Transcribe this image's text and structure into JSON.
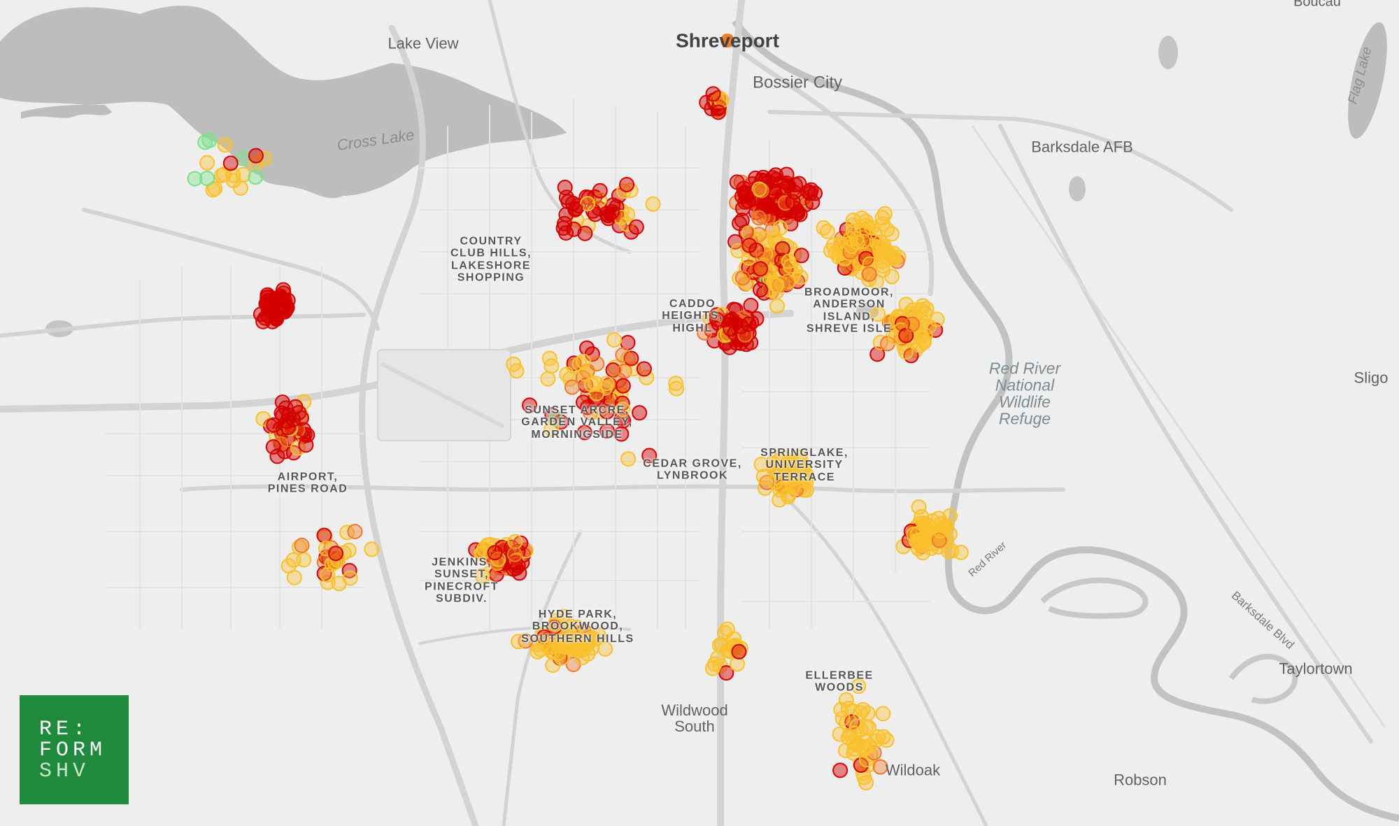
{
  "map": {
    "colors": {
      "critical": "#d40000",
      "high": "#f0792a",
      "moderate": "#fbc02d",
      "good": "#7be08a"
    },
    "places": {
      "shreveport": "Shreveport",
      "bossier_city": "Bossier City",
      "lake_view": "Lake View",
      "cross_lake": "Cross Lake",
      "barksdale_afb": "Barksdale AFB",
      "boucau": "Boucau",
      "flag_lake": "Flag Lake",
      "sligo": "Sligo",
      "red_river_refuge": "Red River National Wildlife Refuge",
      "red_river": "Red River",
      "barksdale_blvd": "Barksdale Blvd",
      "taylortown": "Taylortown",
      "wildwood_south": "Wildwood South",
      "robson": "Robson",
      "wildoak": "Wildoak"
    },
    "neighborhoods": {
      "country_club": [
        "COUNTRY",
        "CLUB HILLS,",
        "LAKESHORE",
        "SHOPPING"
      ],
      "caddo_heights": [
        "CADDO",
        "HEIGHTS,",
        "HIGHL"
      ],
      "broadmoor": [
        "BROADMOOR,",
        "ANDERSON",
        "ISLAND,",
        "SHREVE ISLE"
      ],
      "sunset_acre": [
        "SUNSET ARCRE,",
        "GARDEN VALLEY,",
        "MORNINGSIDE"
      ],
      "cedar_grove": [
        "CEDAR GROVE,",
        "LYNBROOK"
      ],
      "springlake": [
        "SPRINGLAKE,",
        "UNIVERSITY",
        "TERRACE"
      ],
      "airport": [
        "AIRPORT,",
        "PINES ROAD"
      ],
      "jenkins": [
        "JENKINS,",
        "SUNSET,",
        "PINECROFT",
        "SUBDIV."
      ],
      "hyde_park": [
        "HYDE PARK,",
        "BROOKWOOD,",
        "SOUTHERN HILLS"
      ],
      "ellerbee": [
        "ELLERBEE",
        "WOODS"
      ]
    }
  },
  "logo": {
    "line1": "RE:",
    "line2": "FORM",
    "line3": "SHV"
  }
}
